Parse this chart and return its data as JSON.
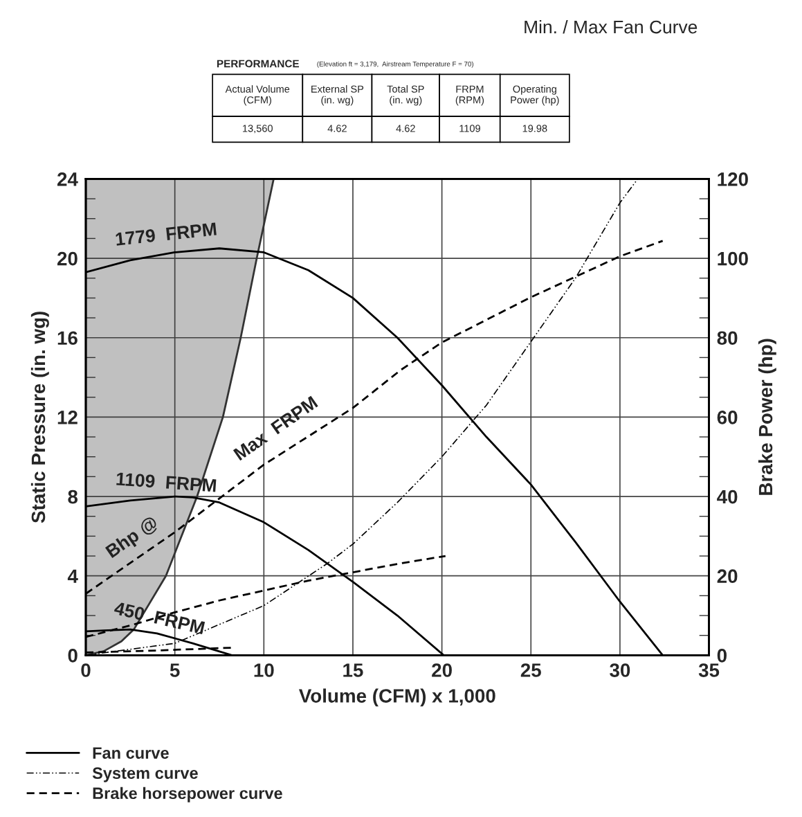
{
  "chart_data": {
    "type": "line",
    "title": "Min. / Max Fan Curve",
    "xlabel": "Volume (CFM) x 1,000",
    "ylabel": "Static Pressure (in. wg)",
    "y2label": "Brake Power (hp)",
    "xlim": [
      0,
      35
    ],
    "xticks": [
      0,
      5,
      10,
      15,
      20,
      25,
      30,
      35
    ],
    "ylim": [
      0,
      24
    ],
    "yticks": [
      0,
      4,
      8,
      12,
      16,
      20,
      24
    ],
    "y2lim": [
      0,
      120
    ],
    "y2ticks": [
      0,
      20,
      40,
      60,
      80,
      100,
      120
    ],
    "grid": true,
    "legend": "bottom",
    "series": [
      {
        "line_style": "solid",
        "color": "#333333",
        "x": [
          0,
          1,
          2,
          2.7,
          4.5,
          6.25,
          7.7,
          8.7,
          9.6,
          10.55
        ],
        "values": [
          0,
          0.2,
          0.7,
          1.3,
          4,
          8,
          12,
          16,
          20,
          24
        ],
        "lower": [
          0,
          0.2,
          0.7,
          1.3,
          4,
          8,
          12,
          16,
          20,
          24
        ],
        "upper": [
          24,
          24,
          24,
          24,
          24,
          24,
          24,
          24,
          24,
          24
        ]
      },
      {
        "name": "Fan curve",
        "line_style": "solid",
        "color": "#000000",
        "x": [
          0,
          2.5,
          5,
          7.5,
          10,
          12.5,
          15,
          17.5,
          20,
          22.5,
          25,
          27.5,
          30,
          32.4
        ],
        "values": [
          19.3,
          19.9,
          20.3,
          20.5,
          20.3,
          19.4,
          18.0,
          16.0,
          13.6,
          11.0,
          8.6,
          5.7,
          2.7,
          0
        ]
      },
      {
        "line_style": "solid",
        "color": "#000000",
        "x": [
          0,
          2.5,
          5,
          6,
          7.5,
          10,
          12.5,
          15,
          17.5,
          20.1
        ],
        "values": [
          7.5,
          7.8,
          8.0,
          7.95,
          7.7,
          6.7,
          5.3,
          3.7,
          2.0,
          0
        ]
      },
      {
        "line_style": "solid",
        "color": "#000000",
        "x": [
          0,
          1,
          2.5,
          4,
          6,
          8.2
        ],
        "values": [
          1.2,
          1.25,
          1.3,
          1.1,
          0.6,
          0
        ]
      },
      {
        "name": "System curve",
        "line_style": "dotted",
        "color": "#000000",
        "x": [
          0,
          5,
          10,
          13.56,
          15,
          17.5,
          20,
          22.5,
          25,
          27.5,
          30,
          31
        ],
        "values": [
          0,
          0.6,
          2.5,
          4.62,
          5.6,
          7.7,
          10.0,
          12.6,
          15.8,
          19.0,
          22.8,
          24
        ]
      },
      {
        "name": "Brake horsepower curve",
        "line_style": "dashed",
        "axis": "y2",
        "color": "#000000",
        "x": [
          0,
          5,
          10,
          15,
          17.7,
          20,
          25,
          30,
          32.4
        ],
        "values": [
          15.5,
          31,
          48,
          62.3,
          71.9,
          78.8,
          90.2,
          100.5,
          104.4
        ]
      },
      {
        "line_style": "dashed",
        "axis": "y2",
        "color": "#000000",
        "x": [
          0,
          2.5,
          5,
          7.5,
          10,
          12.5,
          15,
          17.5,
          20.2
        ],
        "values": [
          4.6,
          7.5,
          10.8,
          13.8,
          16.3,
          18.8,
          20.9,
          23.0,
          25.0
        ]
      },
      {
        "line_style": "dashed",
        "axis": "y2",
        "color": "#000000",
        "x": [
          0,
          4,
          8.2
        ],
        "values": [
          0.7,
          1.2,
          1.9
        ]
      }
    ],
    "annotations": [
      "1779  FRPM",
      "1109  FRPM",
      "450  FRPM",
      "Bhp @",
      "Max  FRPM",
      "PERFORMANCE",
      "(Elevation ft = 3,179,  Airstream Temperature F = 70)",
      "Actual Volume\n(CFM)",
      "External SP\n(in. wg)",
      "Total SP\n(in. wg)",
      "FRPM\n(RPM)",
      "Operating\nPower (hp)",
      "13,560",
      "4.62",
      "4.62",
      "1109",
      "19.98"
    ]
  }
}
